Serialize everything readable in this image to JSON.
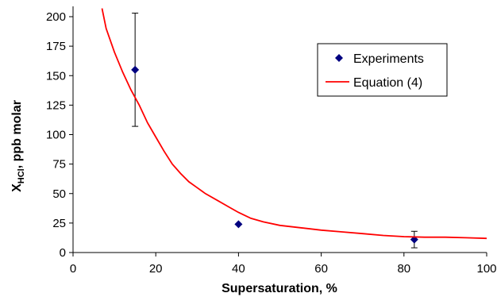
{
  "chart_data": {
    "type": "scatter",
    "title": "",
    "xlabel": "Supersaturation, %",
    "ylabel": {
      "main": "X",
      "subscript": "HCl",
      "suffix": ", ppb molar"
    },
    "xlim": [
      0,
      100
    ],
    "ylim": [
      0,
      200
    ],
    "xticks": [
      0,
      20,
      40,
      60,
      80,
      100
    ],
    "yticks": [
      0,
      25,
      50,
      75,
      100,
      125,
      150,
      175,
      200
    ],
    "grid": false,
    "legend_position": "top-right",
    "series": [
      {
        "name": "Experiments",
        "kind": "points",
        "marker": "diamond",
        "color": "#000080",
        "points": [
          {
            "x": 15,
            "y": 155,
            "err_low": 107,
            "err_high": 203
          },
          {
            "x": 40,
            "y": 24,
            "err_low": 24,
            "err_high": 24
          },
          {
            "x": 82.5,
            "y": 11,
            "err_low": 4,
            "err_high": 18
          }
        ]
      },
      {
        "name": "Equation (4)",
        "kind": "line",
        "color": "#ff0000",
        "points": [
          [
            7,
            207
          ],
          [
            8,
            190
          ],
          [
            10,
            170
          ],
          [
            12,
            153
          ],
          [
            14,
            138
          ],
          [
            16,
            125
          ],
          [
            18,
            110
          ],
          [
            20,
            98
          ],
          [
            22,
            86
          ],
          [
            24,
            75
          ],
          [
            26,
            67
          ],
          [
            28,
            60
          ],
          [
            30,
            55
          ],
          [
            32,
            50
          ],
          [
            35,
            44
          ],
          [
            38,
            38
          ],
          [
            40,
            34
          ],
          [
            43,
            29
          ],
          [
            46,
            26
          ],
          [
            50,
            23
          ],
          [
            55,
            21
          ],
          [
            60,
            19
          ],
          [
            65,
            17.5
          ],
          [
            70,
            16
          ],
          [
            75,
            14.5
          ],
          [
            80,
            13.5
          ],
          [
            85,
            13
          ],
          [
            90,
            13
          ],
          [
            95,
            12.5
          ],
          [
            100,
            12
          ]
        ]
      }
    ]
  }
}
